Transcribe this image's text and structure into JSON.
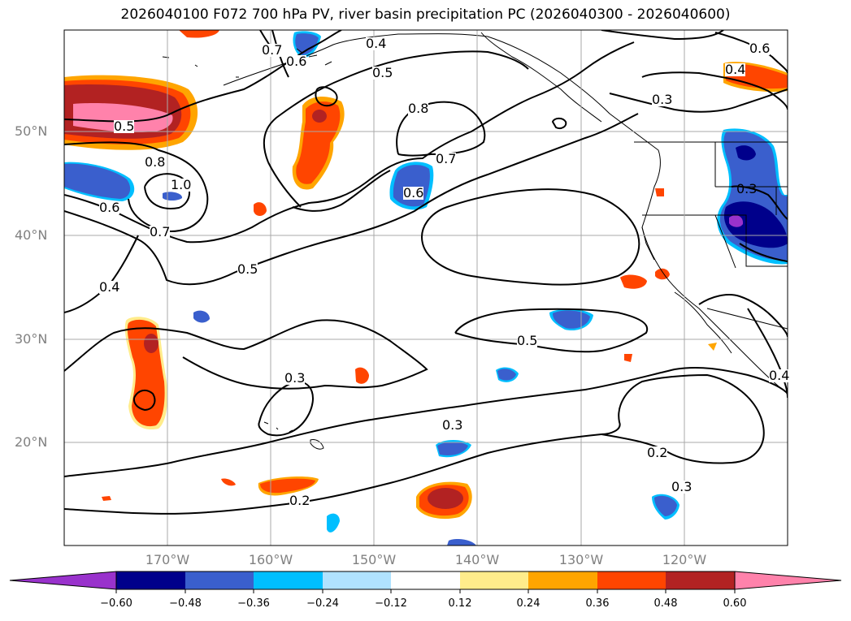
{
  "title": "2026040100 F072 700 hPa PV, river basin precipitation PC (2026040300 - 2026040600)",
  "lat_labels": [
    "50°N",
    "40°N",
    "30°N",
    "20°N"
  ],
  "lon_labels": [
    "170°W",
    "160°W",
    "150°W",
    "140°W",
    "130°W",
    "120°W"
  ],
  "contour_labels": [
    "0.7",
    "0.6",
    "0.4",
    "0.5",
    "0.8",
    "0.7",
    "0.6",
    "0.5",
    "0.8",
    "1.0",
    "0.6",
    "0.7",
    "0.5",
    "0.4",
    "0.5",
    "0.3",
    "0.3",
    "0.2",
    "0.2",
    "0.3",
    "0.4",
    "0.6",
    "0.3",
    "0.3",
    "0.4"
  ],
  "colorbar": {
    "ticks": [
      "−0.60",
      "−0.48",
      "−0.36",
      "−0.24",
      "−0.12",
      "0.12",
      "0.24",
      "0.36",
      "0.48",
      "0.60"
    ],
    "colors": [
      "#9932cc",
      "#00008b",
      "#3a5fcd",
      "#00bfff",
      "#b0e2ff",
      "#ffffff",
      "#ffec8b",
      "#ffa500",
      "#ff4500",
      "#b22222",
      "#ff82ab"
    ]
  },
  "precip_colors": {
    "pos_weak": "#ffec8b",
    "pos_mid": "#ffa500",
    "pos_strong": "#ff4500",
    "pos_stronger": "#b22222",
    "pos_max": "#ff82ab",
    "neg_weak": "#b0e2ff",
    "neg_mid": "#00bfff",
    "neg_strong": "#3a5fcd",
    "neg_stronger": "#00008b",
    "neg_max": "#9932cc"
  }
}
